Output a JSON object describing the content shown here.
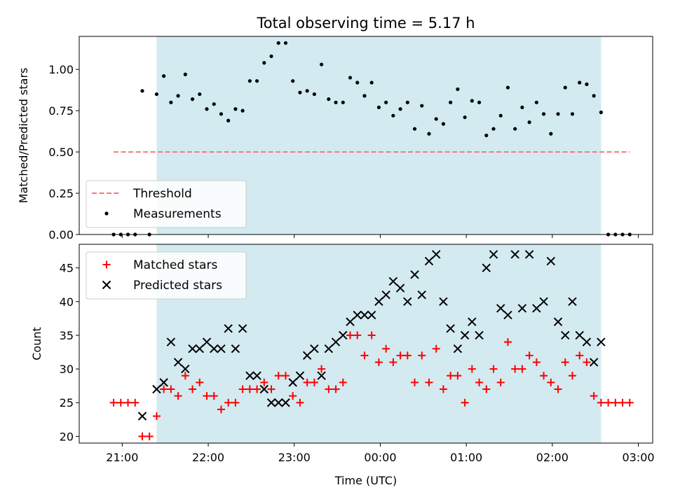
{
  "chart_data": [
    {
      "type": "scatter",
      "title": "Total observing time = 5.17 h",
      "ylabel": "Matched/Predicted stars",
      "ylim": [
        0,
        1.2
      ],
      "yticks": [
        "0.00",
        "0.25",
        "0.50",
        "0.75",
        "1.00"
      ],
      "shaded_span": [
        "21:24",
        "02:34"
      ],
      "shade_color": "#d3eaf0",
      "threshold": {
        "name": "Threshold",
        "value": 0.5,
        "x": [
          "20:54",
          "02:54"
        ],
        "color": "#f07b7b",
        "style": "dashed"
      },
      "legend": "lower-left",
      "series": [
        {
          "name": "Measurements",
          "color": "#000000",
          "marker": "dot",
          "points": [
            [
              "20:54",
              0
            ],
            [
              "20:59",
              0
            ],
            [
              "21:04",
              0
            ],
            [
              "21:09",
              0
            ],
            [
              "21:14",
              0.87
            ],
            [
              "21:19",
              0
            ],
            [
              "21:24",
              0.85
            ],
            [
              "21:29",
              0.96
            ],
            [
              "21:34",
              0.8
            ],
            [
              "21:39",
              0.84
            ],
            [
              "21:44",
              0.97
            ],
            [
              "21:49",
              0.82
            ],
            [
              "21:54",
              0.85
            ],
            [
              "21:59",
              0.76
            ],
            [
              "22:04",
              0.79
            ],
            [
              "22:09",
              0.73
            ],
            [
              "22:14",
              0.69
            ],
            [
              "22:19",
              0.76
            ],
            [
              "22:24",
              0.75
            ],
            [
              "22:29",
              0.93
            ],
            [
              "22:34",
              0.93
            ],
            [
              "22:39",
              1.04
            ],
            [
              "22:44",
              1.08
            ],
            [
              "22:49",
              1.16
            ],
            [
              "22:54",
              1.16
            ],
            [
              "22:59",
              0.93
            ],
            [
              "23:04",
              0.86
            ],
            [
              "23:09",
              0.87
            ],
            [
              "23:14",
              0.85
            ],
            [
              "23:19",
              1.03
            ],
            [
              "23:24",
              0.82
            ],
            [
              "23:29",
              0.8
            ],
            [
              "23:34",
              0.8
            ],
            [
              "23:39",
              0.95
            ],
            [
              "23:44",
              0.92
            ],
            [
              "23:49",
              0.84
            ],
            [
              "23:54",
              0.92
            ],
            [
              "23:59",
              0.77
            ],
            [
              "00:04",
              0.8
            ],
            [
              "00:09",
              0.72
            ],
            [
              "00:14",
              0.76
            ],
            [
              "00:19",
              0.8
            ],
            [
              "00:24",
              0.64
            ],
            [
              "00:29",
              0.78
            ],
            [
              "00:34",
              0.61
            ],
            [
              "00:39",
              0.7
            ],
            [
              "00:44",
              0.67
            ],
            [
              "00:49",
              0.8
            ],
            [
              "00:54",
              0.88
            ],
            [
              "00:59",
              0.71
            ],
            [
              "01:04",
              0.81
            ],
            [
              "01:09",
              0.8
            ],
            [
              "01:14",
              0.6
            ],
            [
              "01:19",
              0.64
            ],
            [
              "01:24",
              0.72
            ],
            [
              "01:29",
              0.89
            ],
            [
              "01:34",
              0.64
            ],
            [
              "01:39",
              0.77
            ],
            [
              "01:44",
              0.68
            ],
            [
              "01:49",
              0.8
            ],
            [
              "01:54",
              0.73
            ],
            [
              "01:59",
              0.61
            ],
            [
              "02:04",
              0.73
            ],
            [
              "02:09",
              0.89
            ],
            [
              "02:14",
              0.73
            ],
            [
              "02:19",
              0.92
            ],
            [
              "02:24",
              0.91
            ],
            [
              "02:29",
              0.84
            ],
            [
              "02:34",
              0.74
            ],
            [
              "02:39",
              0
            ],
            [
              "02:44",
              0
            ],
            [
              "02:49",
              0
            ],
            [
              "02:54",
              0
            ]
          ]
        }
      ]
    },
    {
      "type": "scatter",
      "xlabel": "Time (UTC)",
      "ylabel": "Count",
      "ylim": [
        19,
        48.5
      ],
      "yticks": [
        "20",
        "25",
        "30",
        "35",
        "40",
        "45"
      ],
      "xticks": [
        "21:00",
        "22:00",
        "23:00",
        "00:00",
        "01:00",
        "02:00",
        "03:00"
      ],
      "shaded_span": [
        "21:24",
        "02:34"
      ],
      "legend": "upper-left",
      "series": [
        {
          "name": "Matched stars",
          "color": "#ff0000",
          "marker": "plus",
          "points": [
            [
              "20:54",
              25
            ],
            [
              "20:59",
              25
            ],
            [
              "21:04",
              25
            ],
            [
              "21:09",
              25
            ],
            [
              "21:14",
              20
            ],
            [
              "21:19",
              20
            ],
            [
              "21:24",
              23
            ],
            [
              "21:29",
              27
            ],
            [
              "21:34",
              27
            ],
            [
              "21:39",
              26
            ],
            [
              "21:44",
              29
            ],
            [
              "21:49",
              27
            ],
            [
              "21:54",
              28
            ],
            [
              "21:59",
              26
            ],
            [
              "22:04",
              26
            ],
            [
              "22:09",
              24
            ],
            [
              "22:14",
              25
            ],
            [
              "22:19",
              25
            ],
            [
              "22:24",
              27
            ],
            [
              "22:29",
              27
            ],
            [
              "22:34",
              27
            ],
            [
              "22:39",
              28
            ],
            [
              "22:44",
              27
            ],
            [
              "22:49",
              29
            ],
            [
              "22:54",
              29
            ],
            [
              "22:59",
              26
            ],
            [
              "23:04",
              25
            ],
            [
              "23:09",
              28
            ],
            [
              "23:14",
              28
            ],
            [
              "23:19",
              30
            ],
            [
              "23:24",
              27
            ],
            [
              "23:29",
              27
            ],
            [
              "23:34",
              28
            ],
            [
              "23:39",
              35
            ],
            [
              "23:44",
              35
            ],
            [
              "23:49",
              32
            ],
            [
              "23:54",
              35
            ],
            [
              "23:59",
              31
            ],
            [
              "00:04",
              33
            ],
            [
              "00:09",
              31
            ],
            [
              "00:14",
              32
            ],
            [
              "00:19",
              32
            ],
            [
              "00:24",
              28
            ],
            [
              "00:29",
              32
            ],
            [
              "00:34",
              28
            ],
            [
              "00:39",
              33
            ],
            [
              "00:44",
              27
            ],
            [
              "00:49",
              29
            ],
            [
              "00:54",
              29
            ],
            [
              "00:59",
              25
            ],
            [
              "01:04",
              30
            ],
            [
              "01:09",
              28
            ],
            [
              "01:14",
              27
            ],
            [
              "01:19",
              30
            ],
            [
              "01:24",
              28
            ],
            [
              "01:29",
              34
            ],
            [
              "01:34",
              30
            ],
            [
              "01:39",
              30
            ],
            [
              "01:44",
              32
            ],
            [
              "01:49",
              31
            ],
            [
              "01:54",
              29
            ],
            [
              "01:59",
              28
            ],
            [
              "02:04",
              27
            ],
            [
              "02:09",
              31
            ],
            [
              "02:14",
              29
            ],
            [
              "02:19",
              32
            ],
            [
              "02:24",
              31
            ],
            [
              "02:29",
              26
            ],
            [
              "02:34",
              25
            ],
            [
              "02:39",
              25
            ],
            [
              "02:44",
              25
            ],
            [
              "02:49",
              25
            ],
            [
              "02:54",
              25
            ]
          ]
        },
        {
          "name": "Predicted stars",
          "color": "#000000",
          "marker": "x",
          "points": [
            [
              "21:14",
              23
            ],
            [
              "21:24",
              27
            ],
            [
              "21:29",
              28
            ],
            [
              "21:34",
              34
            ],
            [
              "21:39",
              31
            ],
            [
              "21:44",
              30
            ],
            [
              "21:49",
              33
            ],
            [
              "21:54",
              33
            ],
            [
              "21:59",
              34
            ],
            [
              "22:04",
              33
            ],
            [
              "22:09",
              33
            ],
            [
              "22:14",
              36
            ],
            [
              "22:19",
              33
            ],
            [
              "22:24",
              36
            ],
            [
              "22:29",
              29
            ],
            [
              "22:34",
              29
            ],
            [
              "22:39",
              27
            ],
            [
              "22:44",
              25
            ],
            [
              "22:49",
              25
            ],
            [
              "22:54",
              25
            ],
            [
              "22:59",
              28
            ],
            [
              "23:04",
              29
            ],
            [
              "23:09",
              32
            ],
            [
              "23:14",
              33
            ],
            [
              "23:19",
              29
            ],
            [
              "23:24",
              33
            ],
            [
              "23:29",
              34
            ],
            [
              "23:34",
              35
            ],
            [
              "23:39",
              37
            ],
            [
              "23:44",
              38
            ],
            [
              "23:49",
              38
            ],
            [
              "23:54",
              38
            ],
            [
              "23:59",
              40
            ],
            [
              "00:04",
              41
            ],
            [
              "00:09",
              43
            ],
            [
              "00:14",
              42
            ],
            [
              "00:19",
              40
            ],
            [
              "00:24",
              44
            ],
            [
              "00:29",
              41
            ],
            [
              "00:34",
              46
            ],
            [
              "00:39",
              47
            ],
            [
              "00:44",
              40
            ],
            [
              "00:49",
              36
            ],
            [
              "00:54",
              33
            ],
            [
              "00:59",
              35
            ],
            [
              "01:04",
              37
            ],
            [
              "01:09",
              35
            ],
            [
              "01:14",
              45
            ],
            [
              "01:19",
              47
            ],
            [
              "01:24",
              39
            ],
            [
              "01:29",
              38
            ],
            [
              "01:34",
              47
            ],
            [
              "01:39",
              39
            ],
            [
              "01:44",
              47
            ],
            [
              "01:49",
              39
            ],
            [
              "01:54",
              40
            ],
            [
              "01:59",
              46
            ],
            [
              "02:04",
              37
            ],
            [
              "02:09",
              35
            ],
            [
              "02:14",
              40
            ],
            [
              "02:19",
              35
            ],
            [
              "02:24",
              34
            ],
            [
              "02:29",
              31
            ],
            [
              "02:34",
              34
            ]
          ]
        }
      ]
    }
  ]
}
